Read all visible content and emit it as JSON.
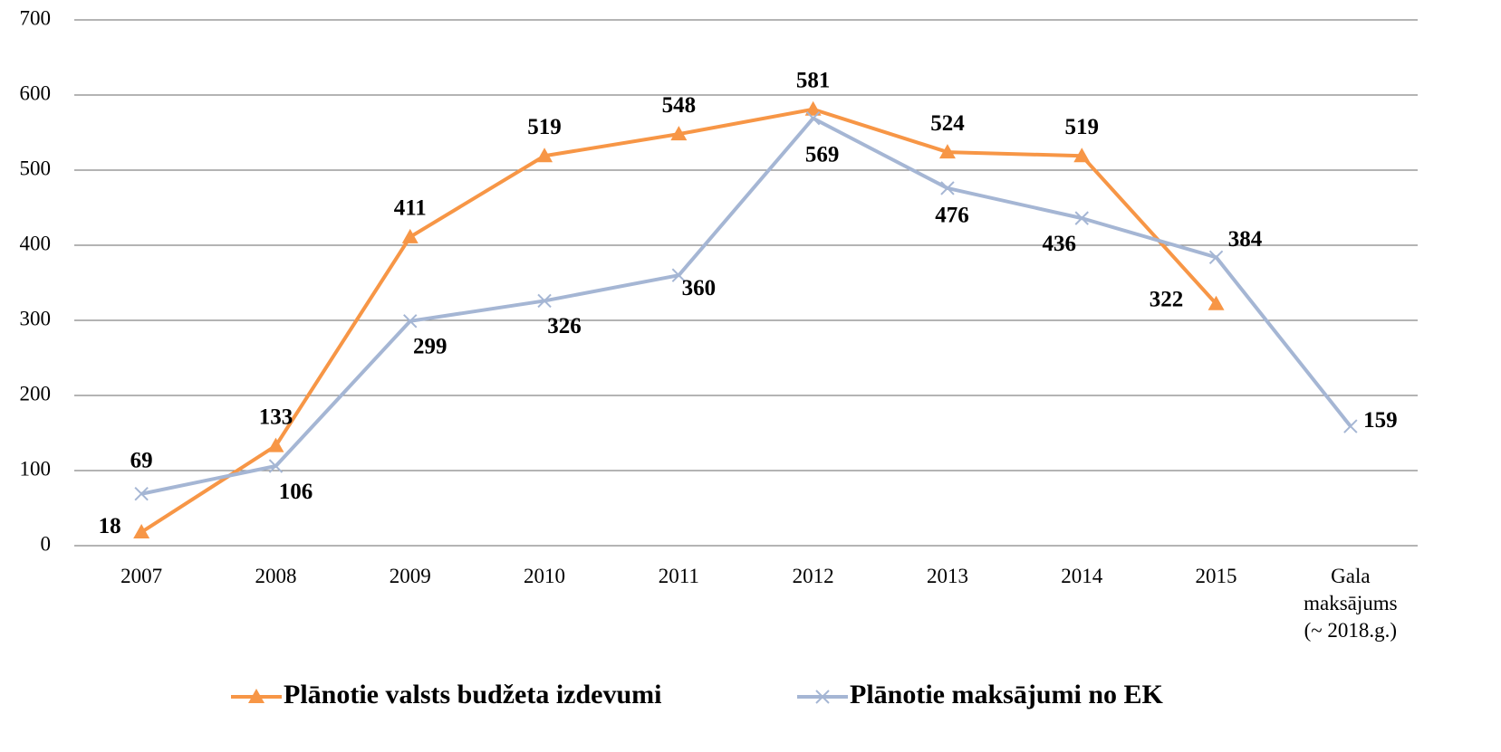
{
  "chart_data": {
    "type": "line",
    "categories": [
      "2007",
      "2008",
      "2009",
      "2010",
      "2011",
      "2012",
      "2013",
      "2014",
      "2015",
      "Gala maksājums (~ 2018.g.)"
    ],
    "series": [
      {
        "name": "Plānotie valsts budžeta izdevumi",
        "color": "#f79646",
        "marker": "triangle",
        "values": [
          18,
          133,
          411,
          519,
          548,
          581,
          524,
          519,
          322,
          null
        ]
      },
      {
        "name": "Plānotie maksājumi no EK",
        "color": "#a5b6d4",
        "marker": "x",
        "values": [
          69,
          106,
          299,
          326,
          360,
          569,
          476,
          436,
          384,
          159
        ]
      }
    ],
    "ylim": [
      0,
      700
    ],
    "yticks": [
      0,
      100,
      200,
      300,
      400,
      500,
      600,
      700
    ],
    "grid": true,
    "legend": "bottom"
  }
}
